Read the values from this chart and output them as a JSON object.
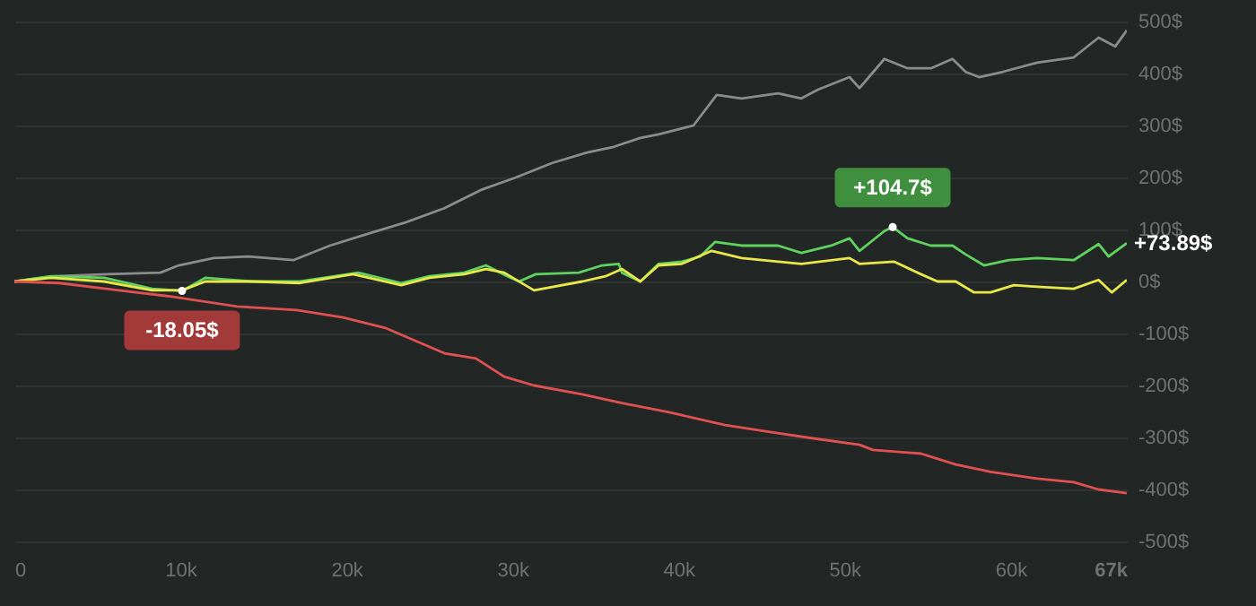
{
  "chart_data": {
    "type": "line",
    "xlim": [
      0,
      67000
    ],
    "ylim": [
      -500,
      500
    ],
    "xticks": [
      {
        "value": 0,
        "label": "0"
      },
      {
        "value": 10000,
        "label": "10k"
      },
      {
        "value": 20000,
        "label": "20k"
      },
      {
        "value": 30000,
        "label": "30k"
      },
      {
        "value": 40000,
        "label": "40k"
      },
      {
        "value": 50000,
        "label": "50k"
      },
      {
        "value": 60000,
        "label": "60k"
      },
      {
        "value": 67000,
        "label": "67k"
      }
    ],
    "yticks": [
      {
        "value": 500,
        "label": "500$"
      },
      {
        "value": 400,
        "label": "400$"
      },
      {
        "value": 300,
        "label": "300$"
      },
      {
        "value": 200,
        "label": "200$"
      },
      {
        "value": 100,
        "label": "100$"
      },
      {
        "value": 0,
        "label": "0$"
      },
      {
        "value": -100,
        "label": "-100$"
      },
      {
        "value": -200,
        "label": "-200$"
      },
      {
        "value": -300,
        "label": "-300$"
      },
      {
        "value": -400,
        "label": "-400$"
      },
      {
        "value": -500,
        "label": "-500$"
      }
    ],
    "grid": "y",
    "marker": "none",
    "line_style": "solid",
    "series": [
      {
        "color": "#8c8c8c",
        "x": [
          0,
          2400,
          5600,
          8800,
          9900,
          12000,
          14100,
          16800,
          19000,
          21100,
          23600,
          25900,
          28100,
          30200,
          32400,
          34500,
          36100,
          37700,
          38800,
          40900,
          42300,
          43800,
          46000,
          47400,
          48400,
          50300,
          50900,
          52400,
          53800,
          55200,
          56500,
          57300,
          58100,
          59500,
          61600,
          63800,
          65300,
          66300,
          67000
        ],
        "values": [
          0,
          10,
          14,
          17,
          31,
          45,
          48,
          41,
          69,
          90,
          114,
          141,
          176,
          200,
          228,
          248,
          259,
          276,
          283,
          300,
          359,
          352,
          362,
          352,
          369,
          393,
          372,
          428,
          410,
          410,
          428,
          403,
          393,
          403,
          421,
          431,
          469,
          452,
          483
        ]
      },
      {
        "color": "#5fd35f",
        "x": [
          0,
          2200,
          5400,
          8300,
          10100,
          11500,
          14300,
          17200,
          20100,
          20700,
          23300,
          25000,
          27100,
          28400,
          29700,
          30400,
          31400,
          34000,
          35400,
          36400,
          36600,
          37700,
          38800,
          40200,
          41300,
          42200,
          43800,
          46000,
          47400,
          49200,
          50300,
          50900,
          52400,
          52900,
          53800,
          55200,
          56500,
          57300,
          58400,
          59900,
          61600,
          63800,
          65300,
          65900,
          67000
        ],
        "values": [
          0,
          10,
          7,
          -14,
          -18.05,
          7,
          0,
          0,
          14,
          17,
          -3,
          10,
          17,
          31,
          10,
          0,
          14,
          17,
          31,
          34,
          17,
          0,
          34,
          38,
          48,
          76,
          69,
          69,
          55,
          69,
          83,
          59,
          97,
          104.7,
          83,
          69,
          69,
          52,
          31,
          41,
          45,
          41,
          72,
          48,
          73.89
        ]
      },
      {
        "color": "#e8e84a",
        "x": [
          0,
          2200,
          5400,
          8300,
          10100,
          11500,
          14300,
          17200,
          20400,
          23300,
          25000,
          27100,
          28400,
          29500,
          31300,
          34200,
          35600,
          36600,
          37700,
          38800,
          40200,
          41999,
          43800,
          46000,
          47400,
          50300,
          50900,
          53000,
          54600,
          55600,
          56700,
          57800,
          58800,
          60200,
          61600,
          63800,
          65300,
          66100,
          67000
        ],
        "values": [
          0,
          7,
          0,
          -17,
          -17,
          0,
          0,
          -3,
          14,
          -7,
          7,
          14,
          24,
          17,
          -17,
          0,
          10,
          24,
          0,
          31,
          34,
          59,
          45,
          38,
          34,
          45,
          34,
          38,
          14,
          0,
          0,
          -21,
          -21,
          -7,
          -10,
          -14,
          3,
          -21,
          3
        ]
      },
      {
        "color": "#e05252",
        "x": [
          0,
          2700,
          6300,
          9200,
          13400,
          17000,
          19800,
          22400,
          25900,
          27800,
          29500,
          31300,
          34200,
          36600,
          39500,
          42800,
          45600,
          48400,
          50900,
          51700,
          54600,
          56700,
          58800,
          61600,
          63800,
          65300,
          67000
        ],
        "values": [
          0,
          -3,
          -17,
          -28,
          -48,
          -55,
          -69,
          -90,
          -138,
          -148,
          -183,
          -200,
          -217,
          -234,
          -252,
          -276,
          -290,
          -303,
          -314,
          -324,
          -331,
          -352,
          -366,
          -379,
          -386,
          -400,
          -407
        ]
      }
    ],
    "annotations": [
      {
        "text": "+104.7$",
        "x": 52900,
        "y": 104.7
      },
      {
        "text": "-18.05$",
        "x": 10100,
        "y": -18.05
      },
      {
        "text": "+73.89$",
        "x": 67000,
        "y": 73.89
      }
    ]
  }
}
